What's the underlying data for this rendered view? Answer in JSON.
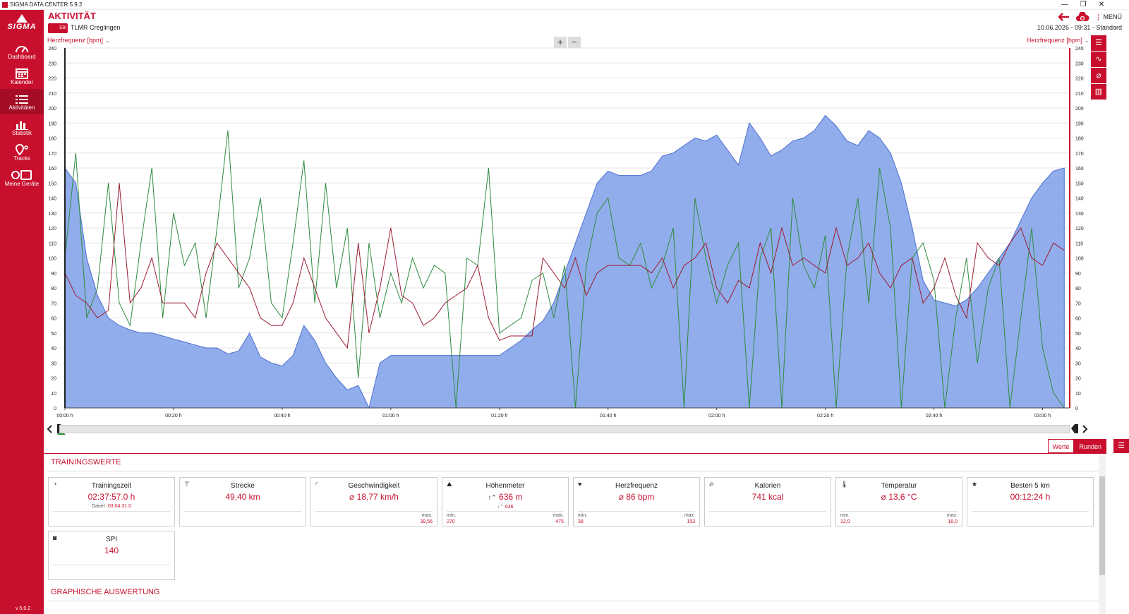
{
  "window": {
    "title": "SIGMA DATA CENTER 5.9.2",
    "min": "—",
    "max": "❐",
    "close": "✕"
  },
  "sidebar": {
    "logo": "SIGMA",
    "items": [
      {
        "label": "Dashboard",
        "icon": "dashboard-icon"
      },
      {
        "label": "Kalender",
        "icon": "calendar-icon"
      },
      {
        "label": "Aktivitäten",
        "icon": "list-icon"
      },
      {
        "label": "Statistik",
        "icon": "bar-chart-icon"
      },
      {
        "label": "Tracks",
        "icon": "map-pin-icon"
      },
      {
        "label": "Meine Geräte",
        "icon": "devices-icon"
      }
    ],
    "version": "v 5.9.2"
  },
  "header": {
    "title": "AKTIVITÄT",
    "activity_badge": "EBI",
    "activity_name": "TLMR Creglingen",
    "menu_label": "MENÜ",
    "date_time": "10.06.2026 - 09:31",
    "separator": "-",
    "profile": "Standard"
  },
  "chart": {
    "left_axis_label": "Herzfrequenz [bpm]",
    "right_axis_label": "Herzfrequenz [bpm]",
    "zoom_in": "+",
    "zoom_out": "−"
  },
  "chart_data": {
    "type": "area",
    "yticks": [
      0,
      10,
      20,
      30,
      40,
      50,
      60,
      70,
      80,
      90,
      100,
      110,
      120,
      130,
      140,
      150,
      160,
      170,
      180,
      190,
      200,
      210,
      220,
      230,
      240
    ],
    "ylim": [
      0,
      240
    ],
    "xticks": [
      "00:00 h",
      "00:20 h",
      "00:40 h",
      "01:00 h",
      "01:20 h",
      "01:40 h",
      "02:00 h",
      "02:20 h",
      "02:40 h",
      "03:00 h"
    ],
    "xlim_minutes": [
      0,
      185
    ],
    "grid": true,
    "series": [
      {
        "color": "#7f9fe8",
        "kind": "area",
        "x": [
          0,
          2,
          4,
          6,
          8,
          10,
          12,
          14,
          16,
          18,
          20,
          22,
          24,
          26,
          28,
          30,
          32,
          34,
          36,
          38,
          40,
          42,
          44,
          46,
          48,
          50,
          52,
          54,
          56,
          58,
          60,
          62,
          64,
          66,
          68,
          70,
          72,
          74,
          76,
          78,
          80,
          82,
          84,
          86,
          88,
          90,
          92,
          94,
          96,
          98,
          100,
          102,
          104,
          106,
          108,
          110,
          112,
          114,
          116,
          118,
          120,
          122,
          124,
          126,
          128,
          130,
          132,
          134,
          136,
          138,
          140,
          142,
          144,
          146,
          148,
          150,
          152,
          154,
          156,
          158,
          160,
          162,
          164,
          166,
          168,
          170,
          172,
          174,
          176,
          178,
          180,
          182,
          184
        ],
        "values": [
          160,
          150,
          100,
          75,
          60,
          55,
          52,
          50,
          50,
          48,
          46,
          44,
          42,
          40,
          40,
          36,
          38,
          50,
          34,
          30,
          28,
          35,
          55,
          45,
          30,
          20,
          12,
          15,
          0,
          30,
          35,
          35,
          35,
          35,
          35,
          35,
          35,
          35,
          35,
          35,
          35,
          40,
          45,
          52,
          58,
          70,
          90,
          110,
          130,
          150,
          158,
          155,
          155,
          155,
          158,
          168,
          170,
          175,
          180,
          178,
          182,
          172,
          162,
          190,
          180,
          168,
          172,
          178,
          180,
          185,
          195,
          188,
          178,
          175,
          185,
          180,
          170,
          150,
          120,
          85,
          72,
          70,
          68,
          72,
          80,
          90,
          100,
          110,
          125,
          140,
          150,
          158,
          160
        ]
      },
      {
        "color": "#2e8b3e",
        "kind": "line",
        "x": [
          0,
          2,
          4,
          6,
          8,
          10,
          12,
          14,
          16,
          18,
          20,
          22,
          24,
          26,
          28,
          30,
          32,
          34,
          36,
          38,
          40,
          42,
          44,
          46,
          48,
          50,
          52,
          54,
          56,
          58,
          60,
          62,
          64,
          66,
          68,
          70,
          72,
          74,
          76,
          78,
          80,
          82,
          84,
          86,
          88,
          90,
          92,
          94,
          96,
          98,
          100,
          102,
          104,
          106,
          108,
          110,
          112,
          114,
          116,
          118,
          120,
          122,
          124,
          126,
          128,
          130,
          132,
          134,
          136,
          138,
          140,
          142,
          144,
          146,
          148,
          150,
          152,
          154,
          156,
          158,
          160,
          162,
          164,
          166,
          168,
          170,
          172,
          174,
          176,
          178,
          180,
          182,
          184
        ],
        "values": [
          100,
          170,
          60,
          80,
          150,
          70,
          55,
          110,
          160,
          60,
          130,
          95,
          110,
          60,
          120,
          185,
          80,
          100,
          140,
          70,
          60,
          110,
          165,
          70,
          150,
          80,
          120,
          20,
          110,
          60,
          90,
          70,
          100,
          80,
          95,
          90,
          0,
          100,
          95,
          160,
          50,
          55,
          60,
          85,
          90,
          60,
          95,
          0,
          95,
          130,
          140,
          100,
          95,
          110,
          80,
          95,
          120,
          0,
          140,
          100,
          70,
          95,
          110,
          0,
          100,
          120,
          0,
          140,
          95,
          80,
          115,
          0,
          100,
          140,
          70,
          160,
          120,
          0,
          100,
          110,
          85,
          0,
          60,
          100,
          30,
          80,
          100,
          0,
          60,
          120,
          40,
          10,
          0
        ]
      },
      {
        "color": "#9b1c31",
        "kind": "line",
        "x": [
          0,
          2,
          4,
          6,
          8,
          10,
          12,
          14,
          16,
          18,
          20,
          22,
          24,
          26,
          28,
          30,
          32,
          34,
          36,
          38,
          40,
          42,
          44,
          46,
          48,
          50,
          52,
          54,
          56,
          58,
          60,
          62,
          64,
          66,
          68,
          70,
          72,
          74,
          76,
          78,
          80,
          82,
          84,
          86,
          88,
          90,
          92,
          94,
          96,
          98,
          100,
          102,
          104,
          106,
          108,
          110,
          112,
          114,
          116,
          118,
          120,
          122,
          124,
          126,
          128,
          130,
          132,
          134,
          136,
          138,
          140,
          142,
          144,
          146,
          148,
          150,
          152,
          154,
          156,
          158,
          160,
          162,
          164,
          166,
          168,
          170,
          172,
          174,
          176,
          178,
          180,
          182,
          184
        ],
        "values": [
          90,
          75,
          70,
          60,
          65,
          150,
          70,
          80,
          100,
          70,
          70,
          70,
          60,
          90,
          110,
          100,
          90,
          80,
          60,
          55,
          55,
          70,
          100,
          80,
          60,
          50,
          40,
          110,
          50,
          80,
          120,
          75,
          70,
          55,
          60,
          70,
          75,
          80,
          95,
          60,
          45,
          48,
          48,
          48,
          100,
          90,
          80,
          100,
          75,
          90,
          95,
          95,
          95,
          95,
          90,
          100,
          80,
          95,
          100,
          110,
          80,
          70,
          85,
          80,
          110,
          90,
          120,
          95,
          100,
          95,
          90,
          120,
          95,
          100,
          110,
          90,
          80,
          95,
          100,
          70,
          80,
          100,
          75,
          60,
          110,
          100,
          95,
          110,
          120,
          100,
          95,
          110,
          105
        ]
      }
    ]
  },
  "section1": {
    "title": "TRAININGSWERTE"
  },
  "section2": {
    "title": "GRAPHISCHE AUSWERTUNG"
  },
  "tabs": {
    "werte": "Werte",
    "runden": "Runden"
  },
  "cards": {
    "trainingszeit": {
      "label": "Trainingszeit",
      "value": "02:37:57.0 h",
      "sub_key": "Dauer:",
      "sub_val": "03:04:31.0"
    },
    "strecke": {
      "label": "Strecke",
      "value": "49,40 km"
    },
    "geschwindigkeit": {
      "label": "Geschwindigkeit",
      "value": "⌀ 18,77 km/h",
      "max_label": "max.",
      "max": "39,56"
    },
    "hoehenmeter": {
      "label": "Höhenmeter",
      "value": "636 m",
      "down": "636",
      "min_label": "min.",
      "min": "270",
      "max_label": "max.",
      "max": "475"
    },
    "herzfrequenz": {
      "label": "Herzfrequenz",
      "value": "⌀ 86 bpm",
      "min_label": "min.",
      "min": "38",
      "max_label": "max.",
      "max": "153"
    },
    "kalorien": {
      "label": "Kalorien",
      "value": "741 kcal"
    },
    "temperatur": {
      "label": "Temperatur",
      "value": "⌀ 13,6 °C",
      "min_label": "min.",
      "min": "12,0",
      "max_label": "max.",
      "max": "18,0"
    },
    "besten": {
      "label": "Besten 5 km",
      "value": "00:12:24 h"
    },
    "spi": {
      "label": "SPI",
      "value": "140"
    }
  },
  "colors": {
    "accent": "#c8102e",
    "area": "#7f9fe8",
    "speed": "#2e8b3e",
    "hr": "#9b1c31"
  }
}
